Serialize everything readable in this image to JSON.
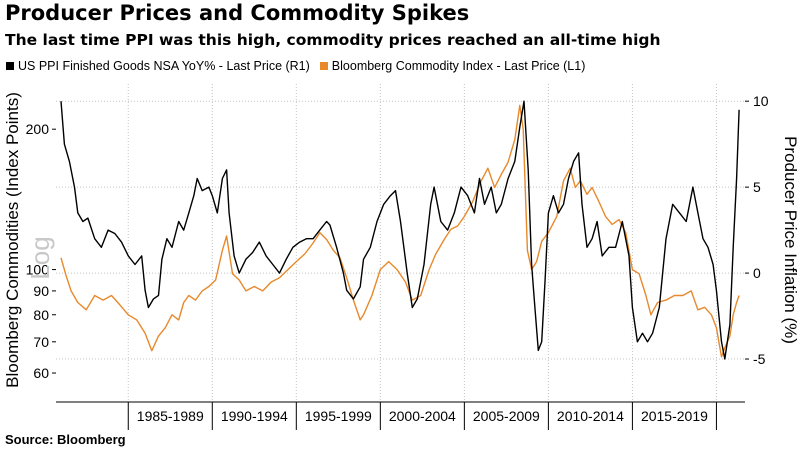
{
  "chart_data": {
    "type": "line",
    "title": "Producer Prices and Commodity Spikes",
    "subtitle": "The last time PPI was this high, commodity prices reached an all-time high",
    "source": "Source: Bloomberg",
    "log_marker": "Log",
    "x_ticks": [
      "1985-1989",
      "1990-1994",
      "1995-1999",
      "2000-2004",
      "2005-2009",
      "2010-2014",
      "2015-2019"
    ],
    "left_axis": {
      "label": "Bloomberg Commodities (Index Points)",
      "scale": "log",
      "range": [
        52,
        250
      ],
      "ticks": [
        60,
        70,
        80,
        90,
        100,
        200
      ]
    },
    "right_axis": {
      "label": "Producer Price Inflation (%)",
      "range": [
        -7.5,
        11
      ],
      "ticks": [
        -5,
        0,
        5,
        10
      ]
    },
    "grid": true,
    "legend_position": "top-left",
    "series": [
      {
        "name": "US PPI Finished Goods NSA YoY% - Last Price (R1)",
        "axis": "right",
        "color": "#000000",
        "x": [
          1981.0,
          1981.2,
          1981.5,
          1981.8,
          1982.0,
          1982.3,
          1982.6,
          1983.0,
          1983.4,
          1983.8,
          1984.2,
          1984.6,
          1985.0,
          1985.4,
          1985.8,
          1986.0,
          1986.2,
          1986.5,
          1986.8,
          1987.0,
          1987.3,
          1987.6,
          1988.0,
          1988.3,
          1988.6,
          1988.9,
          1989.1,
          1989.4,
          1989.8,
          1990.0,
          1990.3,
          1990.6,
          1990.85,
          1991.0,
          1991.3,
          1991.6,
          1992.0,
          1992.4,
          1992.8,
          1993.2,
          1993.6,
          1994.0,
          1994.4,
          1994.8,
          1995.2,
          1995.6,
          1996.0,
          1996.4,
          1996.8,
          1997.0,
          1997.4,
          1997.8,
          1998.0,
          1998.4,
          1998.8,
          1999.0,
          1999.4,
          1999.8,
          2000.2,
          2000.6,
          2000.9,
          2001.2,
          2001.6,
          2001.9,
          2002.2,
          2002.6,
          2003.0,
          2003.2,
          2003.6,
          2004.0,
          2004.4,
          2004.8,
          2005.2,
          2005.6,
          2005.9,
          2006.2,
          2006.6,
          2006.9,
          2007.2,
          2007.6,
          2008.0,
          2008.3,
          2008.55,
          2008.8,
          2009.0,
          2009.2,
          2009.4,
          2009.6,
          2009.8,
          2010.0,
          2010.3,
          2010.6,
          2010.9,
          2011.2,
          2011.5,
          2011.8,
          2012.0,
          2012.3,
          2012.6,
          2012.9,
          2013.2,
          2013.6,
          2014.0,
          2014.4,
          2014.8,
          2015.0,
          2015.3,
          2015.6,
          2015.9,
          2016.2,
          2016.6,
          2017.0,
          2017.4,
          2017.8,
          2018.2,
          2018.6,
          2018.9,
          2019.2,
          2019.5,
          2019.8,
          2020.0,
          2020.3,
          2020.5,
          2020.8,
          2021.0,
          2021.2,
          2021.35
        ],
        "y": [
          10.0,
          7.5,
          6.5,
          5.0,
          3.5,
          3.0,
          3.2,
          2.0,
          1.5,
          2.5,
          2.3,
          1.8,
          1.0,
          0.5,
          1.0,
          -1.0,
          -2.0,
          -1.5,
          -1.3,
          0.8,
          2.0,
          1.5,
          3.0,
          2.5,
          3.5,
          4.5,
          5.5,
          4.8,
          5.0,
          4.5,
          3.5,
          5.5,
          6.0,
          3.5,
          1.0,
          0.0,
          0.8,
          1.2,
          1.8,
          1.0,
          0.5,
          0.0,
          0.8,
          1.5,
          1.8,
          2.0,
          2.0,
          2.5,
          3.0,
          2.8,
          1.5,
          0.0,
          -1.0,
          -1.5,
          -0.8,
          0.8,
          1.5,
          3.0,
          4.0,
          4.5,
          4.8,
          3.0,
          0.0,
          -2.0,
          -1.5,
          0.5,
          4.0,
          5.0,
          3.0,
          2.5,
          3.5,
          5.0,
          4.5,
          3.5,
          5.5,
          4.0,
          5.0,
          3.5,
          4.0,
          5.5,
          6.5,
          8.5,
          10.0,
          6.0,
          0.5,
          -2.0,
          -4.5,
          -4.0,
          -0.5,
          3.5,
          4.5,
          3.5,
          4.0,
          5.5,
          6.5,
          7.0,
          4.0,
          1.5,
          2.0,
          3.0,
          1.0,
          1.5,
          1.5,
          3.0,
          1.0,
          -2.0,
          -4.0,
          -3.5,
          -4.0,
          -3.5,
          -2.0,
          2.0,
          4.0,
          3.5,
          3.0,
          5.0,
          3.5,
          2.0,
          1.5,
          0.5,
          -1.0,
          -4.0,
          -5.0,
          -3.0,
          1.5,
          5.5,
          9.5
        ]
      },
      {
        "name": "Bloomberg Commodity Index - Last Price (L1)",
        "axis": "left",
        "color": "#e8892b",
        "x": [
          1981.0,
          1981.3,
          1981.6,
          1982.0,
          1982.5,
          1983.0,
          1983.5,
          1984.0,
          1984.5,
          1985.0,
          1985.5,
          1986.0,
          1986.4,
          1986.8,
          1987.2,
          1987.6,
          1988.0,
          1988.3,
          1988.6,
          1989.0,
          1989.4,
          1989.8,
          1990.2,
          1990.6,
          1990.85,
          1991.2,
          1991.6,
          1992.0,
          1992.5,
          1993.0,
          1993.5,
          1994.0,
          1994.5,
          1995.0,
          1995.5,
          1996.0,
          1996.4,
          1996.8,
          1997.2,
          1997.6,
          1998.0,
          1998.4,
          1998.8,
          1999.0,
          1999.5,
          2000.0,
          2000.5,
          2001.0,
          2001.5,
          2001.9,
          2002.4,
          2002.9,
          2003.3,
          2003.8,
          2004.2,
          2004.6,
          2005.0,
          2005.5,
          2006.0,
          2006.4,
          2006.8,
          2007.2,
          2007.6,
          2008.0,
          2008.3,
          2008.5,
          2008.75,
          2009.0,
          2009.3,
          2009.6,
          2010.0,
          2010.5,
          2010.9,
          2011.3,
          2011.6,
          2011.9,
          2012.3,
          2012.6,
          2013.0,
          2013.4,
          2013.8,
          2014.2,
          2014.6,
          2015.0,
          2015.4,
          2015.8,
          2016.1,
          2016.5,
          2017.0,
          2017.5,
          2018.0,
          2018.5,
          2018.9,
          2019.3,
          2019.7,
          2020.0,
          2020.3,
          2020.5,
          2020.8,
          2021.0,
          2021.2,
          2021.35
        ],
        "y": [
          106,
          97,
          90,
          85,
          82,
          88,
          86,
          88,
          84,
          80,
          78,
          73,
          67,
          72,
          75,
          80,
          78,
          85,
          88,
          86,
          90,
          92,
          95,
          110,
          118,
          98,
          95,
          90,
          92,
          90,
          94,
          96,
          100,
          104,
          108,
          114,
          120,
          116,
          110,
          106,
          96,
          86,
          78,
          80,
          88,
          100,
          104,
          100,
          94,
          86,
          88,
          100,
          108,
          116,
          122,
          124,
          130,
          140,
          155,
          165,
          150,
          160,
          170,
          190,
          225,
          200,
          110,
          100,
          104,
          115,
          120,
          130,
          155,
          165,
          150,
          155,
          145,
          150,
          140,
          130,
          125,
          128,
          120,
          100,
          98,
          88,
          80,
          85,
          86,
          88,
          88,
          90,
          82,
          83,
          80,
          75,
          65,
          68,
          72,
          80,
          85,
          88
        ]
      }
    ]
  }
}
